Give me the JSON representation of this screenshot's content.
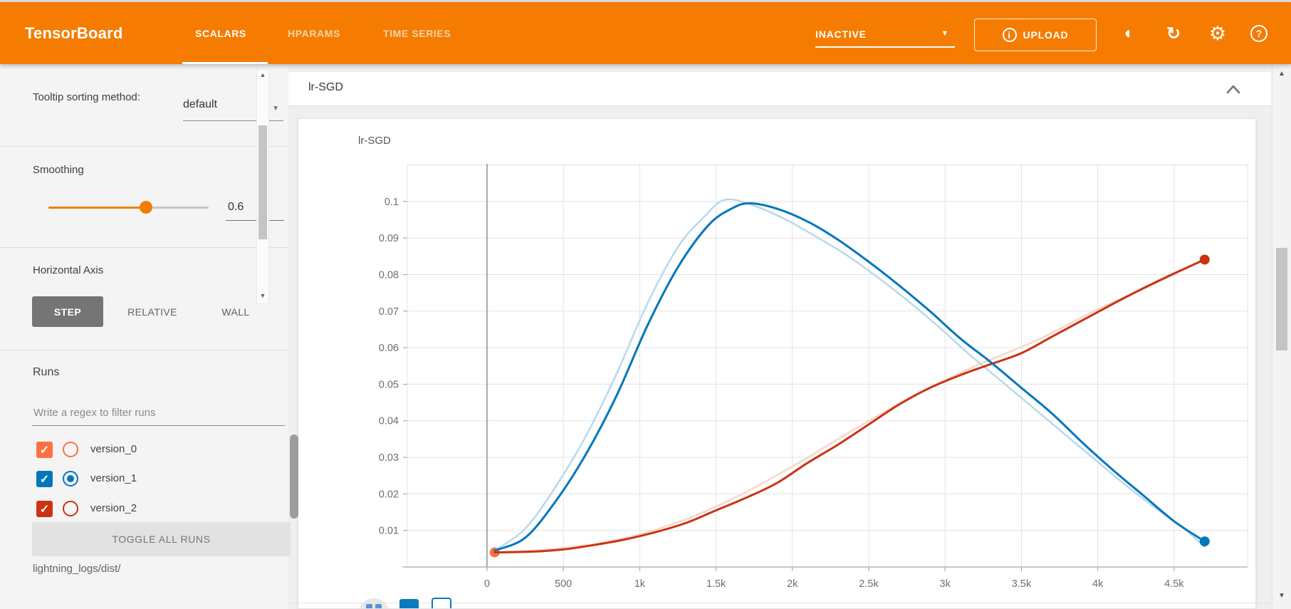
{
  "header": {
    "title": "TensorBoard",
    "tabs": [
      {
        "label": "SCALARS",
        "active": true
      },
      {
        "label": "HPARAMS",
        "active": false
      },
      {
        "label": "TIME SERIES",
        "active": false
      }
    ],
    "run_status": "INACTIVE",
    "upload_label": "UPLOAD",
    "accent_color": "#f57c00"
  },
  "glyphs": {
    "check": "✓",
    "caret": "▼",
    "up_arrow": "▲",
    "down_arrow": "▼",
    "info": "i",
    "question": "?",
    "brightness": "◐",
    "refresh": "↻",
    "gear": "⚙"
  },
  "sidebar": {
    "tooltip_sorting": {
      "label": "Tooltip sorting method:",
      "value": "default"
    },
    "smoothing": {
      "label": "Smoothing",
      "value": "0.6",
      "percent": 61
    },
    "horizontal_axis": {
      "label": "Horizontal Axis",
      "options": [
        {
          "label": "STEP",
          "active": true
        },
        {
          "label": "RELATIVE",
          "active": false
        },
        {
          "label": "WALL",
          "active": false
        }
      ]
    },
    "runs": {
      "label": "Runs",
      "filter_placeholder": "Write a regex to filter runs",
      "items": [
        {
          "name": "version_0",
          "color": "#ff7043",
          "checked": true,
          "radio_selected": false
        },
        {
          "name": "version_1",
          "color": "#0077bb",
          "checked": true,
          "radio_selected": true
        },
        {
          "name": "version_2",
          "color": "#cc3311",
          "checked": true,
          "radio_selected": false
        }
      ],
      "toggle_all_label": "TOGGLE ALL RUNS",
      "log_dir": "lightning_logs/dist/"
    }
  },
  "main": {
    "category_title": "lr-SGD"
  },
  "chart_data": {
    "type": "line",
    "title": "lr-SGD",
    "xlim": [
      -522,
      4981
    ],
    "ylim": [
      0,
      0.1103
    ],
    "grid": true,
    "x_ticks": [
      {
        "value": 0,
        "label": "0"
      },
      {
        "value": 500,
        "label": "500"
      },
      {
        "value": 1000,
        "label": "1k"
      },
      {
        "value": 1500,
        "label": "1.5k"
      },
      {
        "value": 2000,
        "label": "2k"
      },
      {
        "value": 2500,
        "label": "2.5k"
      },
      {
        "value": 3000,
        "label": "3k"
      },
      {
        "value": 3500,
        "label": "3.5k"
      },
      {
        "value": 4000,
        "label": "4k"
      },
      {
        "value": 4500,
        "label": "4.5k"
      }
    ],
    "y_ticks": [
      {
        "value": 0.01,
        "label": "0.01"
      },
      {
        "value": 0.02,
        "label": "0.02"
      },
      {
        "value": 0.03,
        "label": "0.03"
      },
      {
        "value": 0.04,
        "label": "0.04"
      },
      {
        "value": 0.05,
        "label": "0.05"
      },
      {
        "value": 0.06,
        "label": "0.06"
      },
      {
        "value": 0.07,
        "label": "0.07"
      },
      {
        "value": 0.08,
        "label": "0.08"
      },
      {
        "value": 0.09,
        "label": "0.09"
      },
      {
        "value": 0.1,
        "label": "0.1"
      }
    ],
    "zero_line_x": 0,
    "series": [
      {
        "name": "version_0",
        "color": "#ff7043",
        "style": "point",
        "width": 0,
        "end_marker": false,
        "points": [
          [
            50,
            0.004
          ]
        ]
      },
      {
        "name": "version_2 (raw)",
        "color": "#f6d5cc",
        "style": "line",
        "width": 2.5,
        "end_marker": false,
        "points": [
          [
            50,
            0.004
          ],
          [
            400,
            0.0048
          ],
          [
            800,
            0.007
          ],
          [
            1200,
            0.0115
          ],
          [
            1600,
            0.0185
          ],
          [
            2000,
            0.0275
          ],
          [
            2400,
            0.0375
          ],
          [
            2800,
            0.047
          ],
          [
            3200,
            0.055
          ],
          [
            3600,
            0.062
          ],
          [
            4000,
            0.0705
          ],
          [
            4400,
            0.078
          ],
          [
            4700,
            0.0843
          ]
        ]
      },
      {
        "name": "version_1 (raw)",
        "color": "#b9d8ec",
        "style": "line",
        "width": 2.5,
        "end_marker": false,
        "points": [
          [
            50,
            0.0045
          ],
          [
            250,
            0.0105
          ],
          [
            450,
            0.022
          ],
          [
            650,
            0.036
          ],
          [
            850,
            0.053
          ],
          [
            1050,
            0.072
          ],
          [
            1250,
            0.0875
          ],
          [
            1420,
            0.0957
          ],
          [
            1560,
            0.1005
          ],
          [
            1750,
            0.0988
          ],
          [
            1950,
            0.0952
          ],
          [
            2150,
            0.0905
          ],
          [
            2350,
            0.0855
          ],
          [
            2550,
            0.0795
          ],
          [
            2750,
            0.073
          ],
          [
            2950,
            0.066
          ],
          [
            3150,
            0.0585
          ],
          [
            3350,
            0.0515
          ],
          [
            3550,
            0.0445
          ],
          [
            3750,
            0.0375
          ],
          [
            3950,
            0.0305
          ],
          [
            4150,
            0.0235
          ],
          [
            4350,
            0.017
          ],
          [
            4550,
            0.011
          ],
          [
            4700,
            0.0055
          ]
        ]
      },
      {
        "name": "version_2 (smoothed)",
        "color": "#cc3311",
        "style": "line",
        "width": 3,
        "end_marker": true,
        "points": [
          [
            50,
            0.004
          ],
          [
            300,
            0.0042
          ],
          [
            500,
            0.0048
          ],
          [
            700,
            0.006
          ],
          [
            900,
            0.0075
          ],
          [
            1100,
            0.0095
          ],
          [
            1300,
            0.012
          ],
          [
            1500,
            0.0155
          ],
          [
            1700,
            0.019
          ],
          [
            1900,
            0.023
          ],
          [
            2100,
            0.0285
          ],
          [
            2300,
            0.0335
          ],
          [
            2500,
            0.039
          ],
          [
            2700,
            0.0445
          ],
          [
            2900,
            0.049
          ],
          [
            3100,
            0.0525
          ],
          [
            3300,
            0.0555
          ],
          [
            3500,
            0.0585
          ],
          [
            3700,
            0.063
          ],
          [
            3900,
            0.0675
          ],
          [
            4100,
            0.072
          ],
          [
            4300,
            0.0763
          ],
          [
            4500,
            0.0803
          ],
          [
            4700,
            0.0841
          ]
        ]
      },
      {
        "name": "version_1 (smoothed)",
        "color": "#0077bb",
        "style": "line",
        "width": 3,
        "end_marker": true,
        "points": [
          [
            50,
            0.0045
          ],
          [
            250,
            0.008
          ],
          [
            450,
            0.018
          ],
          [
            650,
            0.031
          ],
          [
            850,
            0.047
          ],
          [
            1050,
            0.066
          ],
          [
            1250,
            0.082
          ],
          [
            1450,
            0.0935
          ],
          [
            1600,
            0.098
          ],
          [
            1720,
            0.0995
          ],
          [
            1900,
            0.098
          ],
          [
            2100,
            0.0945
          ],
          [
            2300,
            0.0895
          ],
          [
            2500,
            0.0835
          ],
          [
            2700,
            0.077
          ],
          [
            2900,
            0.07
          ],
          [
            3100,
            0.0625
          ],
          [
            3300,
            0.056
          ],
          [
            3500,
            0.049
          ],
          [
            3700,
            0.042
          ],
          [
            3900,
            0.034
          ],
          [
            4100,
            0.0265
          ],
          [
            4300,
            0.0195
          ],
          [
            4500,
            0.0125
          ],
          [
            4700,
            0.007
          ]
        ]
      }
    ]
  }
}
